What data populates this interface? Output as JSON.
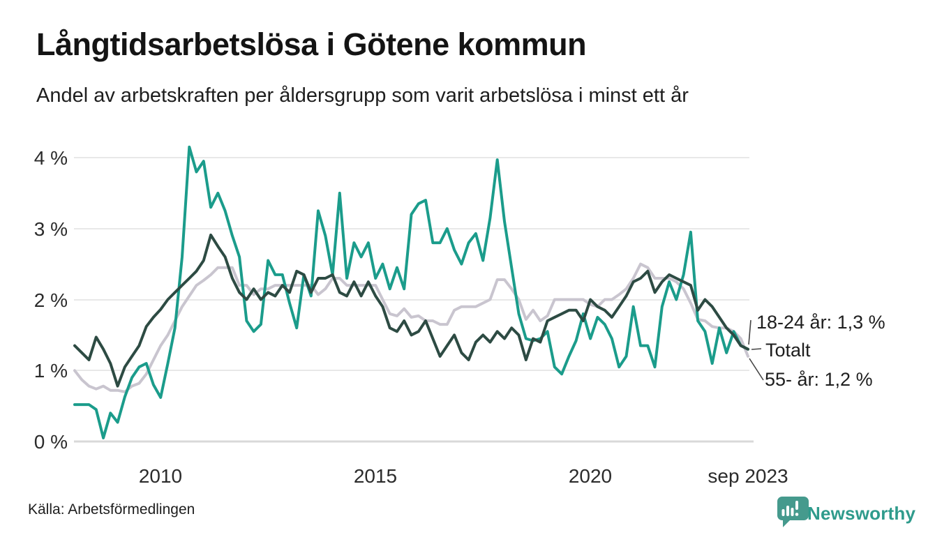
{
  "title": "Långtidsarbetslösa i Götene kommun",
  "subtitle": "Andel av arbetskraften per åldersgrupp som varit arbetslösa i minst ett år",
  "source": "Källa: Arbetsförmedlingen",
  "branding": {
    "name": "Newsworthy",
    "brand_color": "#2f9b8c",
    "icon": "bar-chart-speech-bubble"
  },
  "annotations": {
    "young": "18-24 år: 1,3 %",
    "total": "Totalt",
    "old": "55- år: 1,2 %"
  },
  "colors": {
    "teal_line": "#1b9c8b",
    "dark_green_line": "#2d4b43",
    "light_gray_line": "#c9c5cf",
    "gridline": "#e8e8e8",
    "axis_line": "#d9d9d9",
    "text": "#1e1e1e"
  },
  "chart_data": {
    "type": "line",
    "title": "Långtidsarbetslösa i Götene kommun",
    "subtitle": "Andel av arbetskraften per åldersgrupp som varit arbetslösa i minst ett år",
    "grid": true,
    "legend_position": "end-of-line labels, right side",
    "ylim": [
      0,
      4.3
    ],
    "y_ticks": [
      {
        "label": "0 %",
        "value": 0
      },
      {
        "label": "1 %",
        "value": 1
      },
      {
        "label": "2 %",
        "value": 2
      },
      {
        "label": "3 %",
        "value": 3
      },
      {
        "label": "4 %",
        "value": 4
      }
    ],
    "x_ticks": [
      {
        "label": "2010",
        "t": 2010
      },
      {
        "label": "2015",
        "t": 2015
      },
      {
        "label": "2020",
        "t": 2020
      },
      {
        "label": "sep 2023",
        "t": 2023.67
      }
    ],
    "t_start": 2008.0,
    "t_step_years": 0.1667,
    "sample_interval_months": 2,
    "unit": "% av arbetskraften",
    "series": [
      {
        "name": "18-24 år",
        "end_label": "18-24 år: 1,3 %",
        "end_value": 1.3,
        "color": "#1b9c8b",
        "width": 4,
        "z": 2,
        "values": [
          0.52,
          0.52,
          0.52,
          0.45,
          0.05,
          0.4,
          0.27,
          0.63,
          0.9,
          1.05,
          1.1,
          0.8,
          0.62,
          1.1,
          1.6,
          2.6,
          4.15,
          3.8,
          3.95,
          3.3,
          3.5,
          3.25,
          2.9,
          2.6,
          1.7,
          1.55,
          1.65,
          2.55,
          2.35,
          2.35,
          1.95,
          1.6,
          2.35,
          2.05,
          3.25,
          2.9,
          2.35,
          3.5,
          2.3,
          2.8,
          2.6,
          2.8,
          2.3,
          2.5,
          2.15,
          2.45,
          2.15,
          3.2,
          3.35,
          3.4,
          2.8,
          2.8,
          3.0,
          2.7,
          2.5,
          2.8,
          2.93,
          2.55,
          3.15,
          3.97,
          3.1,
          2.45,
          1.8,
          1.45,
          1.42,
          1.45,
          1.55,
          1.05,
          0.95,
          1.2,
          1.42,
          1.8,
          1.45,
          1.75,
          1.65,
          1.45,
          1.05,
          1.2,
          1.9,
          1.35,
          1.35,
          1.05,
          1.9,
          2.25,
          2.0,
          2.35,
          2.95,
          1.7,
          1.55,
          1.1,
          1.6,
          1.25,
          1.55,
          1.35,
          1.3
        ]
      },
      {
        "name": "Totalt",
        "end_label": "Totalt",
        "end_value": 1.3,
        "color": "#2d4b43",
        "width": 4,
        "z": 3,
        "values": [
          1.35,
          1.25,
          1.15,
          1.47,
          1.3,
          1.1,
          0.78,
          1.05,
          1.2,
          1.35,
          1.62,
          1.75,
          1.86,
          2.0,
          2.1,
          2.2,
          2.3,
          2.4,
          2.55,
          2.91,
          2.75,
          2.6,
          2.3,
          2.1,
          2.0,
          2.15,
          2.0,
          2.1,
          2.05,
          2.2,
          2.1,
          2.4,
          2.35,
          2.1,
          2.3,
          2.3,
          2.35,
          2.1,
          2.05,
          2.25,
          2.05,
          2.25,
          2.05,
          1.9,
          1.6,
          1.55,
          1.7,
          1.5,
          1.55,
          1.7,
          1.45,
          1.2,
          1.35,
          1.5,
          1.25,
          1.15,
          1.4,
          1.5,
          1.4,
          1.55,
          1.45,
          1.6,
          1.5,
          1.15,
          1.45,
          1.4,
          1.7,
          1.75,
          1.8,
          1.85,
          1.85,
          1.7,
          2.0,
          1.9,
          1.85,
          1.75,
          1.9,
          2.05,
          2.25,
          2.3,
          2.4,
          2.1,
          2.25,
          2.35,
          2.3,
          2.25,
          2.2,
          1.85,
          2.0,
          1.9,
          1.75,
          1.6,
          1.5,
          1.35,
          1.3
        ]
      },
      {
        "name": "55- år",
        "end_label": "55- år: 1,2 %",
        "end_value": 1.2,
        "color": "#c9c5cf",
        "width": 4,
        "z": 1,
        "values": [
          1.0,
          0.87,
          0.78,
          0.74,
          0.78,
          0.72,
          0.72,
          0.7,
          0.78,
          0.82,
          0.95,
          1.15,
          1.35,
          1.5,
          1.7,
          1.9,
          2.05,
          2.2,
          2.27,
          2.35,
          2.45,
          2.45,
          2.45,
          2.2,
          2.2,
          2.07,
          2.15,
          2.15,
          2.2,
          2.2,
          2.2,
          2.2,
          2.2,
          2.2,
          2.07,
          2.15,
          2.3,
          2.3,
          2.2,
          2.2,
          2.2,
          2.2,
          2.2,
          2.0,
          1.8,
          1.77,
          1.87,
          1.75,
          1.77,
          1.7,
          1.7,
          1.65,
          1.65,
          1.85,
          1.9,
          1.9,
          1.9,
          1.95,
          2.0,
          2.28,
          2.28,
          2.15,
          2.0,
          1.72,
          1.85,
          1.7,
          1.77,
          2.0,
          2.0,
          2.0,
          2.0,
          2.0,
          1.93,
          1.9,
          2.0,
          2.0,
          2.07,
          2.15,
          2.3,
          2.5,
          2.45,
          2.3,
          2.3,
          2.3,
          2.25,
          2.15,
          1.95,
          1.72,
          1.7,
          1.62,
          1.6,
          1.6,
          1.55,
          1.45,
          1.2
        ]
      }
    ]
  }
}
